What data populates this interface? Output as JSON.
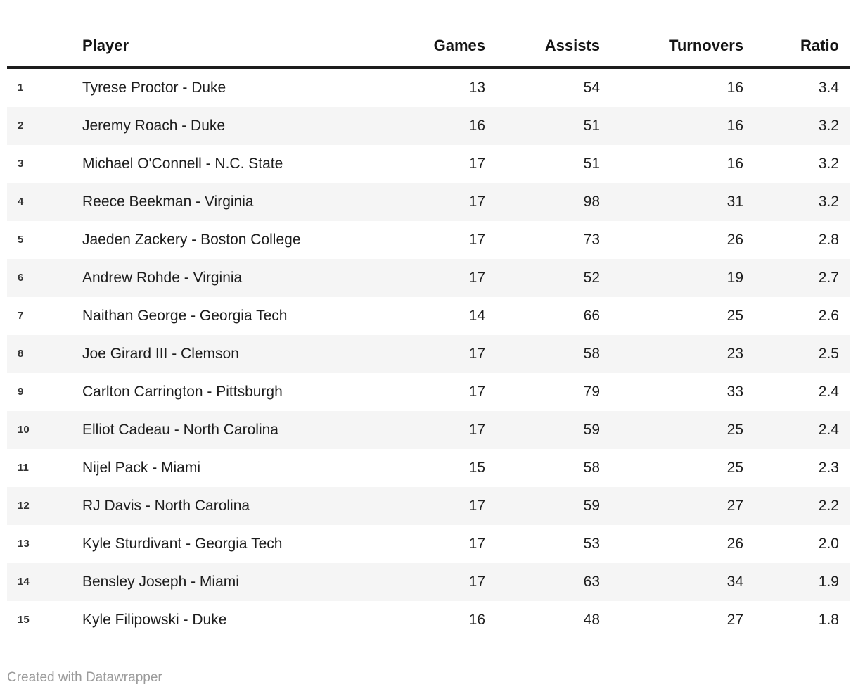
{
  "chart_data": {
    "type": "table",
    "columns": [
      {
        "key": "rank",
        "label": ""
      },
      {
        "key": "player",
        "label": "Player"
      },
      {
        "key": "games",
        "label": "Games"
      },
      {
        "key": "assists",
        "label": "Assists"
      },
      {
        "key": "turnovers",
        "label": "Turnovers"
      },
      {
        "key": "ratio",
        "label": "Ratio"
      }
    ],
    "rows": [
      {
        "rank": "1",
        "player": "Tyrese Proctor - Duke",
        "games": "13",
        "assists": "54",
        "turnovers": "16",
        "ratio": "3.4"
      },
      {
        "rank": "2",
        "player": "Jeremy Roach - Duke",
        "games": "16",
        "assists": "51",
        "turnovers": "16",
        "ratio": "3.2"
      },
      {
        "rank": "3",
        "player": "Michael O'Connell - N.C. State",
        "games": "17",
        "assists": "51",
        "turnovers": "16",
        "ratio": "3.2"
      },
      {
        "rank": "4",
        "player": "Reece Beekman - Virginia",
        "games": "17",
        "assists": "98",
        "turnovers": "31",
        "ratio": "3.2"
      },
      {
        "rank": "5",
        "player": "Jaeden Zackery - Boston College",
        "games": "17",
        "assists": "73",
        "turnovers": "26",
        "ratio": "2.8"
      },
      {
        "rank": "6",
        "player": "Andrew Rohde - Virginia",
        "games": "17",
        "assists": "52",
        "turnovers": "19",
        "ratio": "2.7"
      },
      {
        "rank": "7",
        "player": "Naithan George - Georgia Tech",
        "games": "14",
        "assists": "66",
        "turnovers": "25",
        "ratio": "2.6"
      },
      {
        "rank": "8",
        "player": "Joe Girard III - Clemson",
        "games": "17",
        "assists": "58",
        "turnovers": "23",
        "ratio": "2.5"
      },
      {
        "rank": "9",
        "player": "Carlton Carrington - Pittsburgh",
        "games": "17",
        "assists": "79",
        "turnovers": "33",
        "ratio": "2.4"
      },
      {
        "rank": "10",
        "player": "Elliot Cadeau - North Carolina",
        "games": "17",
        "assists": "59",
        "turnovers": "25",
        "ratio": "2.4"
      },
      {
        "rank": "11",
        "player": "Nijel Pack - Miami",
        "games": "15",
        "assists": "58",
        "turnovers": "25",
        "ratio": "2.3"
      },
      {
        "rank": "12",
        "player": "RJ Davis - North Carolina",
        "games": "17",
        "assists": "59",
        "turnovers": "27",
        "ratio": "2.2"
      },
      {
        "rank": "13",
        "player": "Kyle Sturdivant - Georgia Tech",
        "games": "17",
        "assists": "53",
        "turnovers": "26",
        "ratio": "2.0"
      },
      {
        "rank": "14",
        "player": "Bensley Joseph - Miami",
        "games": "17",
        "assists": "63",
        "turnovers": "34",
        "ratio": "1.9"
      },
      {
        "rank": "15",
        "player": "Kyle Filipowski - Duke",
        "games": "16",
        "assists": "48",
        "turnovers": "27",
        "ratio": "1.8"
      }
    ]
  },
  "footer": {
    "attribution": "Created with Datawrapper"
  },
  "colors": {
    "header_rule": "#1d1d1d",
    "row_stripe": "#f5f5f5",
    "text": "#1d1d1d",
    "rank_text": "#333333",
    "attribution": "#9b9b9b"
  }
}
